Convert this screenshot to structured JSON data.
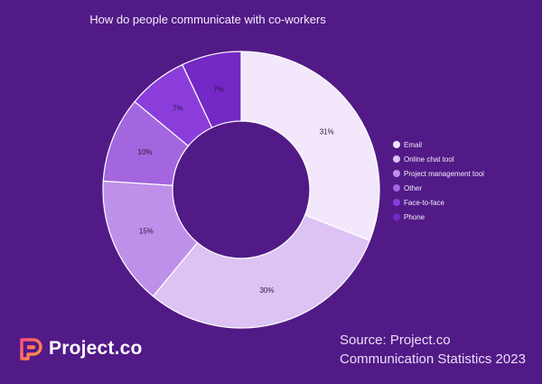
{
  "chart_data": {
    "type": "pie",
    "title": "How do people communicate with co-workers",
    "categories": [
      "Email",
      "Online chat tool",
      "Project management tool",
      "Other",
      "Face-to-face",
      "Phone"
    ],
    "values": [
      31,
      30,
      15,
      10,
      7,
      7
    ],
    "value_labels": [
      "31%",
      "30%",
      "15%",
      "10%",
      "7%",
      "7%"
    ],
    "colors": [
      "#f3e8fb",
      "#dcc3f3",
      "#bf90ea",
      "#a366de",
      "#8b3ddc",
      "#7428c5"
    ],
    "hole": "donut",
    "legend_position": "right"
  },
  "source": {
    "line1": "Source: Project.co",
    "line2": "Communication Statistics 2023"
  },
  "brand": {
    "name": "Project.co",
    "colors": [
      "#ff4f7b",
      "#ff9a3c"
    ]
  }
}
